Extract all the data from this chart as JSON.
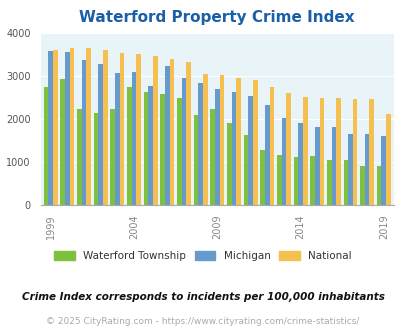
{
  "title": "Waterford Property Crime Index",
  "years": [
    1999,
    2000,
    2001,
    2002,
    2003,
    2004,
    2005,
    2006,
    2007,
    2008,
    2009,
    2010,
    2011,
    2012,
    2013,
    2014,
    2015,
    2016,
    2017,
    2018,
    2019
  ],
  "waterford": [
    2750,
    2920,
    2230,
    2130,
    2220,
    2750,
    2620,
    2580,
    2490,
    2080,
    2220,
    1910,
    1620,
    1280,
    1150,
    1100,
    1140,
    1050,
    1050,
    890,
    890
  ],
  "michigan": [
    3580,
    3560,
    3380,
    3270,
    3060,
    3100,
    2760,
    3230,
    2960,
    2840,
    2700,
    2620,
    2540,
    2330,
    2030,
    1910,
    1810,
    1810,
    1640,
    1640,
    1610
  ],
  "national": [
    3610,
    3660,
    3640,
    3610,
    3530,
    3510,
    3460,
    3400,
    3330,
    3050,
    3020,
    2940,
    2900,
    2730,
    2600,
    2510,
    2490,
    2490,
    2460,
    2460,
    2110
  ],
  "xtick_positions": [
    1999,
    2004,
    2009,
    2014,
    2019
  ],
  "waterford_color": "#7dc13e",
  "michigan_color": "#6699cc",
  "national_color": "#f5c050",
  "bg_plot": "#e8f4f8",
  "title_color": "#1a5fa8",
  "subtitle": "Crime Index corresponds to incidents per 100,000 inhabitants",
  "footer": "© 2025 CityRating.com - https://www.cityrating.com/crime-statistics/",
  "ylim": [
    0,
    4000
  ],
  "yticks": [
    0,
    1000,
    2000,
    3000,
    4000
  ]
}
